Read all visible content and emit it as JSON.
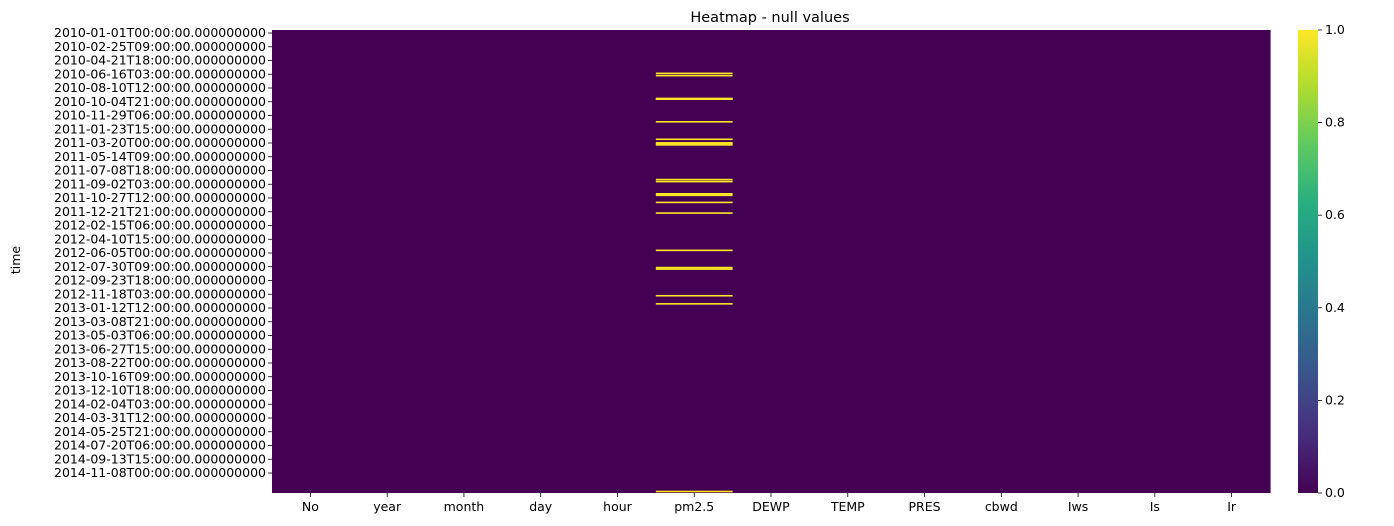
{
  "chart_data": {
    "type": "heatmap",
    "title": "Heatmap - null values",
    "ylabel": "time",
    "xlabel": "",
    "columns": [
      "No",
      "year",
      "month",
      "day",
      "hour",
      "pm2.5",
      "DEWP",
      "TEMP",
      "PRES",
      "cbwd",
      "Iws",
      "Is",
      "Ir"
    ],
    "y_tick_labels": [
      "2010-01-01T00:00:00.000000000",
      "2010-02-25T09:00:00.000000000",
      "2010-04-21T18:00:00.000000000",
      "2010-06-16T03:00:00.000000000",
      "2010-08-10T12:00:00.000000000",
      "2010-10-04T21:00:00.000000000",
      "2010-11-29T06:00:00.000000000",
      "2011-01-23T15:00:00.000000000",
      "2011-03-20T00:00:00.000000000",
      "2011-05-14T09:00:00.000000000",
      "2011-07-08T18:00:00.000000000",
      "2011-09-02T03:00:00.000000000",
      "2011-10-27T12:00:00.000000000",
      "2011-12-21T21:00:00.000000000",
      "2012-02-15T06:00:00.000000000",
      "2012-04-10T15:00:00.000000000",
      "2012-06-05T00:00:00.000000000",
      "2012-07-30T09:00:00.000000000",
      "2012-09-23T18:00:00.000000000",
      "2012-11-18T03:00:00.000000000",
      "2013-01-12T12:00:00.000000000",
      "2013-03-08T21:00:00.000000000",
      "2013-05-03T06:00:00.000000000",
      "2013-06-27T15:00:00.000000000",
      "2013-08-22T00:00:00.000000000",
      "2013-10-16T09:00:00.000000000",
      "2013-12-10T18:00:00.000000000",
      "2014-02-04T03:00:00.000000000",
      "2014-03-31T12:00:00.000000000",
      "2014-05-25T21:00:00.000000000",
      "2014-07-20T06:00:00.000000000",
      "2014-09-13T15:00:00.000000000",
      "2014-11-08T00:00:00.000000000"
    ],
    "time_range": [
      "2010-01-01T00:00:00",
      "2014-12-31T23:00:00"
    ],
    "null_column": "pm2.5",
    "null_times": [
      "2010-06-21T00:00:00",
      "2010-06-30T00:00:00",
      "2010-09-28T00:00:00",
      "2010-09-29T00:00:00",
      "2010-09-30T00:00:00",
      "2010-10-01T00:00:00",
      "2010-12-29T00:00:00",
      "2011-03-08T00:00:00",
      "2011-03-22T00:00:00",
      "2011-03-26T00:00:00",
      "2011-03-30T00:00:00",
      "2011-08-14T00:00:00",
      "2011-08-22T00:00:00",
      "2011-10-09T00:00:00",
      "2011-10-15T00:00:00",
      "2011-11-12T00:00:00",
      "2011-12-24T00:00:00",
      "2012-05-19T00:00:00",
      "2012-07-26T00:00:00",
      "2012-08-01T00:00:00",
      "2012-11-14T00:00:00",
      "2012-12-16T00:00:00",
      "2014-12-26T00:00:00"
    ],
    "colorbar": {
      "colormap": "viridis",
      "range": [
        0.0,
        1.0
      ],
      "ticks": [
        "0.0",
        "0.2",
        "0.4",
        "0.6",
        "0.8",
        "1.0"
      ]
    },
    "colors": {
      "low": "#440154",
      "high": "#fde725"
    },
    "grid": false,
    "legend": "colorbar-right"
  }
}
